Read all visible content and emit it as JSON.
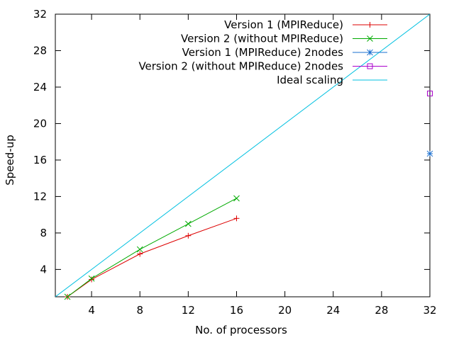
{
  "chart_data": {
    "type": "line",
    "xlabel": "No. of processors",
    "ylabel": "Speed-up",
    "xlim": [
      1,
      32
    ],
    "ylim": [
      1,
      32
    ],
    "xticks": [
      4,
      8,
      12,
      16,
      20,
      24,
      28,
      32
    ],
    "yticks": [
      4,
      8,
      12,
      16,
      20,
      24,
      28,
      32
    ],
    "grid": false,
    "legend_position": "top-right",
    "series": [
      {
        "name": "Version 1 (MPIReduce)",
        "color": "#dd0000",
        "marker": "plus",
        "x": [
          2,
          4,
          8,
          12,
          16
        ],
        "y": [
          1.0,
          2.9,
          5.7,
          7.7,
          9.6
        ]
      },
      {
        "name": "Version 2 (without MPIReduce)",
        "color": "#00aa00",
        "marker": "cross",
        "x": [
          2,
          4,
          8,
          12,
          16
        ],
        "y": [
          1.0,
          3.0,
          6.2,
          9.0,
          11.8
        ]
      },
      {
        "name": "Version 1 (MPIReduce) 2nodes",
        "color": "#1a6fcf",
        "marker": "star",
        "x": [
          32
        ],
        "y": [
          16.7
        ]
      },
      {
        "name": "Version 2 (without MPIReduce) 2nodes",
        "color": "#aa00cc",
        "marker": "square",
        "x": [
          32
        ],
        "y": [
          23.3
        ]
      },
      {
        "name": "Ideal scaling",
        "color": "#00c0e0",
        "marker": "none",
        "x": [
          1,
          32
        ],
        "y": [
          1,
          32
        ]
      }
    ]
  }
}
